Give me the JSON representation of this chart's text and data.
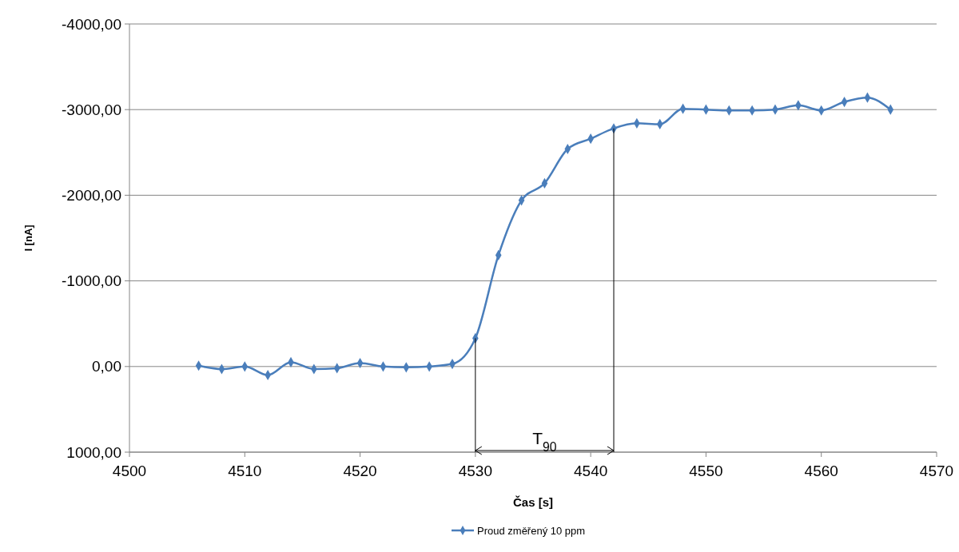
{
  "chart_data": {
    "type": "line",
    "xlabel": "Čas [s]",
    "ylabel": "I [nA]",
    "x": [
      4506,
      4508,
      4510,
      4512,
      4514,
      4516,
      4518,
      4520,
      4522,
      4524,
      4526,
      4528,
      4530,
      4532,
      4534,
      4536,
      4538,
      4540,
      4542,
      4544,
      4546,
      4548,
      4550,
      4552,
      4554,
      4556,
      4558,
      4560,
      4562,
      4564,
      4566
    ],
    "series": [
      {
        "name": "Proud změřený 10 ppm",
        "color": "#4a7ebb",
        "values": [
          -10,
          30,
          0,
          100,
          -50,
          30,
          20,
          -40,
          0,
          10,
          0,
          -30,
          -330,
          -1300,
          -1940,
          -2140,
          -2540,
          -2660,
          -2780,
          -2840,
          -2830,
          -3010,
          -3000,
          -2990,
          -2990,
          -3000,
          -3050,
          -2990,
          -3090,
          -3140,
          -3000
        ]
      }
    ],
    "xlim": [
      4500,
      4570
    ],
    "xticks": [
      4500,
      4510,
      4520,
      4530,
      4540,
      4550,
      4560,
      4570
    ],
    "ylim": [
      1000,
      -4000
    ],
    "yticks": [
      {
        "value": 1000,
        "label": "1000,00"
      },
      {
        "value": 0,
        "label": "0,00"
      },
      {
        "value": -1000,
        "label": "-1000,00"
      },
      {
        "value": -2000,
        "label": "-2000,00"
      },
      {
        "value": -3000,
        "label": "-3000,00"
      },
      {
        "value": -4000,
        "label": "-4000,00"
      }
    ],
    "grid": "y",
    "legend": "bottom",
    "marker": "diamond",
    "line_style": "solid",
    "ref_lines": [
      {
        "axis": "x",
        "value": 4530,
        "label": null,
        "color": "#000000"
      },
      {
        "axis": "x",
        "value": 4542,
        "label": null,
        "color": "#000000"
      }
    ],
    "annotations": [
      "T$_{90}$"
    ]
  }
}
